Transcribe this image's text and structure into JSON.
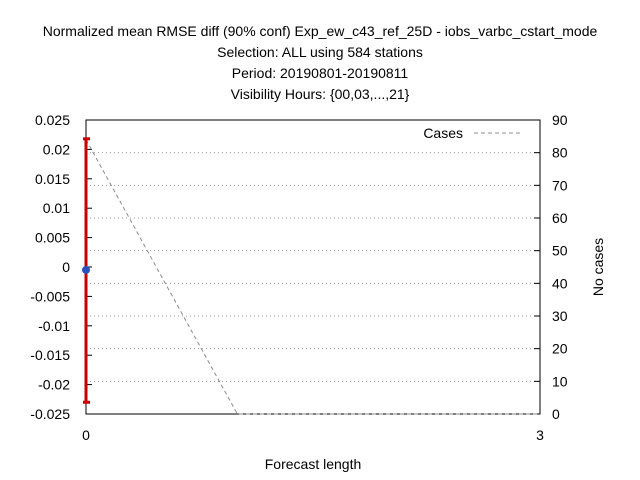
{
  "chart_data": {
    "type": "line",
    "title_lines": [
      "Normalized mean RMSE diff (90% conf) Exp_ew_c43_ref_25D - iobs_varbc_cstart_mode",
      "Selection: ALL using   584 stations",
      "Period: 20190801-20190811",
      "Visibility   Hours: {00,03,...,21}"
    ],
    "xlabel": "Forecast length",
    "ylabel": "",
    "y2label": "No cases",
    "xlim": [
      0,
      3
    ],
    "ylim": [
      -0.025,
      0.025
    ],
    "y2lim": [
      0,
      90
    ],
    "x_ticks": [
      "0",
      "3"
    ],
    "y_ticks": [
      "0.025",
      "0.02",
      "0.015",
      "0.01",
      "0.005",
      "0",
      "-0.005",
      "-0.01",
      "-0.015",
      "-0.02",
      "-0.025"
    ],
    "y2_ticks": [
      "90",
      "80",
      "70",
      "60",
      "50",
      "40",
      "30",
      "20",
      "10",
      "0"
    ],
    "grid": "horizontal dotted",
    "legend": {
      "position": "top-right",
      "entries": [
        "Cases"
      ]
    },
    "series": [
      {
        "name": "Cases",
        "axis": "y2",
        "style": "dashed",
        "color": "#8c8c8c",
        "x": [
          0,
          1,
          2,
          3
        ],
        "y": [
          84,
          0,
          0,
          0
        ]
      },
      {
        "kind": "mean-with-errorbar",
        "axis": "y",
        "color": "#cc0000",
        "marker_color": "#2a52be",
        "x": [
          0
        ],
        "mean": [
          -0.0005
        ],
        "lower": [
          -0.023
        ],
        "upper": [
          0.0218
        ]
      }
    ]
  }
}
